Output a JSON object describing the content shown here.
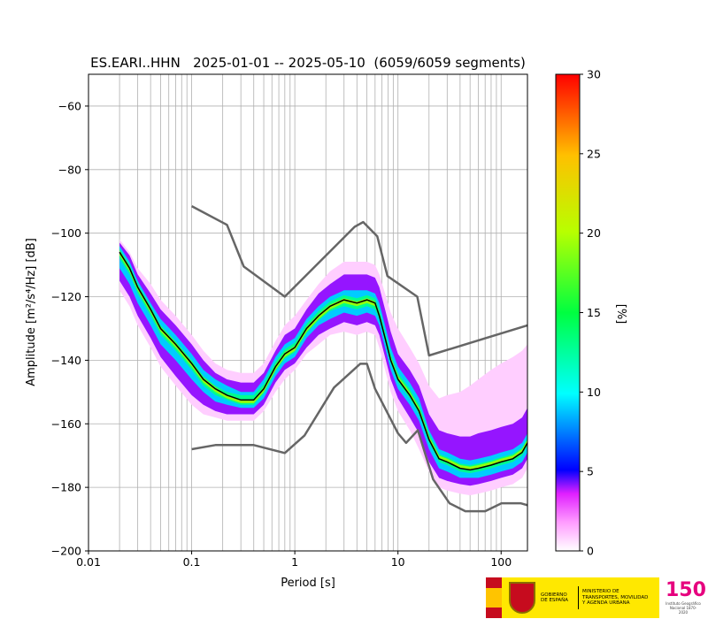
{
  "chart_data": {
    "type": "heatmap",
    "title": "ES.EARI..HHN   2025-01-01 -- 2025-05-10  (6059/6059 segments)",
    "xlabel": "Period [s]",
    "ylabel": "Amplitude [m²/s⁴/Hz] [dB]",
    "xscale": "log",
    "xlim": [
      0.01,
      180
    ],
    "ylim": [
      -200,
      -50
    ],
    "x_ticks": [
      {
        "value": 0.01,
        "label": "0.01"
      },
      {
        "value": 0.1,
        "label": "0.1"
      },
      {
        "value": 1,
        "label": "1"
      },
      {
        "value": 10,
        "label": "10"
      },
      {
        "value": 100,
        "label": "100"
      }
    ],
    "y_ticks": [
      {
        "value": -60,
        "label": "−60"
      },
      {
        "value": -80,
        "label": "−80"
      },
      {
        "value": -100,
        "label": "−100"
      },
      {
        "value": -120,
        "label": "−120"
      },
      {
        "value": -140,
        "label": "−140"
      },
      {
        "value": -160,
        "label": "−160"
      },
      {
        "value": -180,
        "label": "−180"
      },
      {
        "value": -200,
        "label": "−200"
      }
    ],
    "grid": true,
    "colorbar": {
      "label": "[%]",
      "range": [
        0,
        30
      ],
      "ticks": [
        {
          "value": 0,
          "label": "0"
        },
        {
          "value": 5,
          "label": "5"
        },
        {
          "value": 10,
          "label": "10"
        },
        {
          "value": 15,
          "label": "15"
        },
        {
          "value": 20,
          "label": "20"
        },
        {
          "value": 25,
          "label": "25"
        },
        {
          "value": 30,
          "label": "30"
        }
      ]
    },
    "mode_curve": {
      "x": [
        0.02,
        0.025,
        0.03,
        0.04,
        0.05,
        0.07,
        0.1,
        0.13,
        0.17,
        0.22,
        0.3,
        0.4,
        0.5,
        0.65,
        0.8,
        1.0,
        1.3,
        1.7,
        2.2,
        3.0,
        4.0,
        5.0,
        6.0,
        6.6,
        7.5,
        8.5,
        10,
        13,
        16,
        20,
        25,
        30,
        40,
        50,
        60,
        80,
        100,
        130,
        160,
        180
      ],
      "y": [
        -106,
        -111,
        -117,
        -124,
        -130,
        -135,
        -141,
        -146,
        -149,
        -151,
        -152.5,
        -152.5,
        -149,
        -142,
        -138,
        -136,
        -130,
        -126,
        -123,
        -121,
        -122,
        -121,
        -122,
        -126,
        -133,
        -140,
        -146,
        -151,
        -156,
        -165,
        -171,
        -172,
        -174,
        -174.5,
        -174,
        -173,
        -172,
        -171,
        -169,
        -166
      ]
    },
    "density_bands": [
      {
        "level": 1,
        "lower": [
          -118,
          -123,
          -129,
          -136,
          -142,
          -148,
          -154,
          -157,
          -158,
          -159,
          -159,
          -159,
          -156,
          -150,
          -146,
          -143,
          -138,
          -135,
          -132,
          -131,
          -132,
          -131,
          -132,
          -136,
          -143,
          -150,
          -156,
          -162,
          -168,
          -175,
          -180,
          -181,
          -182,
          -182.5,
          -182,
          -181,
          -180,
          -179,
          -177,
          -174
        ],
        "upper": [
          -102,
          -106,
          -111,
          -116,
          -121,
          -126,
          -132,
          -137,
          -141,
          -143,
          -144,
          -144,
          -141,
          -134,
          -129,
          -126,
          -121,
          -116,
          -112,
          -109,
          -109,
          -109,
          -110,
          -113,
          -119,
          -125,
          -130,
          -136,
          -141,
          -148,
          -152,
          -151,
          -150,
          -148,
          -146,
          -143,
          -141,
          -139,
          -137,
          -135
        ]
      },
      {
        "level": 4,
        "lower": [
          -115,
          -120,
          -126,
          -133,
          -139,
          -145,
          -151,
          -154,
          -156,
          -157,
          -157,
          -157,
          -154,
          -147,
          -143,
          -141,
          -136,
          -132,
          -130,
          -128,
          -129,
          -128,
          -129,
          -132,
          -139,
          -146,
          -152,
          -158,
          -163,
          -172,
          -177,
          -178,
          -179,
          -179.5,
          -179,
          -178,
          -177,
          -176,
          -174,
          -171
        ],
        "upper": [
          -103,
          -107,
          -113,
          -119,
          -124,
          -129,
          -135,
          -140,
          -144,
          -146,
          -147,
          -147,
          -144,
          -137,
          -132,
          -130,
          -124,
          -119,
          -116,
          -113,
          -113,
          -113,
          -114,
          -117,
          -124,
          -131,
          -138,
          -143,
          -148,
          -157,
          -162,
          -163,
          -164,
          -164,
          -163,
          -162,
          -161,
          -160,
          -158,
          -155
        ]
      },
      {
        "level": 9,
        "lower": [
          -111,
          -116,
          -122,
          -129,
          -135,
          -140,
          -146,
          -150,
          -153,
          -154,
          -155,
          -155,
          -152,
          -145,
          -141,
          -139,
          -133,
          -129,
          -127,
          -125,
          -126,
          -125,
          -126,
          -129,
          -136,
          -143,
          -149,
          -154,
          -159,
          -168,
          -174,
          -175,
          -177,
          -177,
          -177,
          -176,
          -175,
          -174,
          -172,
          -169
        ],
        "upper": [
          -104,
          -109,
          -115,
          -122,
          -127,
          -132,
          -138,
          -143,
          -146,
          -148,
          -150,
          -150,
          -146,
          -139,
          -135,
          -133,
          -127,
          -123,
          -120,
          -118,
          -118,
          -118,
          -119,
          -122,
          -129,
          -136,
          -142,
          -147,
          -152,
          -162,
          -168,
          -169,
          -171,
          -171.5,
          -171,
          -170,
          -169,
          -168,
          -166,
          -163
        ]
      },
      {
        "level": 13,
        "lower": [
          -108,
          -113,
          -119,
          -126,
          -132,
          -137,
          -143,
          -148,
          -151,
          -152.5,
          -154,
          -154,
          -150.5,
          -143.5,
          -139.5,
          -137.5,
          -131.5,
          -127.5,
          -124.5,
          -123,
          -124,
          -123,
          -124,
          -127,
          -134,
          -141,
          -147,
          -152,
          -157,
          -166,
          -172,
          -173,
          -175,
          -175.5,
          -175,
          -174,
          -173,
          -172,
          -170,
          -167
        ],
        "upper": [
          -105,
          -110,
          -116,
          -123,
          -129,
          -134,
          -140,
          -145,
          -148,
          -150,
          -151,
          -151,
          -147.5,
          -140.5,
          -136.5,
          -134.5,
          -128.5,
          -124.5,
          -121.5,
          -119.5,
          -120.5,
          -119.5,
          -120.5,
          -124,
          -131,
          -138,
          -144,
          -149,
          -154,
          -163,
          -169.5,
          -170.5,
          -172.5,
          -173,
          -172.5,
          -171.5,
          -170.5,
          -169.5,
          -167.5,
          -164.5
        ]
      },
      {
        "level": 19,
        "lower": [
          -107,
          -112,
          -118,
          -125,
          -131,
          -136,
          -142,
          -147,
          -150,
          -152,
          -153.5,
          -153.5,
          -150,
          -143,
          -139,
          -137,
          -131,
          -127,
          -124,
          -122,
          -123,
          -122,
          -123,
          -126,
          -133,
          -140,
          -146,
          -151,
          -156,
          -165,
          -171,
          -172,
          -174,
          -174.5,
          -174,
          -173,
          -172,
          -171,
          -169,
          -166
        ],
        "upper": [
          -105.5,
          -110.5,
          -116.5,
          -123.5,
          -129.5,
          -134.5,
          -140.5,
          -145.5,
          -148.5,
          -151,
          -152.5,
          -152.5,
          -148.5,
          -141.5,
          -137.5,
          -135.5,
          -129.5,
          -125.5,
          -122.5,
          -120.5,
          -121.5,
          -120.5,
          -121.5,
          -125,
          -132,
          -139,
          -145,
          -150,
          -155,
          -164,
          -170,
          -171,
          -173,
          -173.5,
          -173,
          -172,
          -171,
          -170,
          -168,
          -165
        ]
      }
    ],
    "noise_model_high": {
      "x": [
        0.1,
        0.22,
        0.32,
        0.8,
        3.8,
        4.6,
        6.3,
        7.9,
        15.4,
        20,
        180
      ],
      "y": [
        -91.5,
        -97.4,
        -110.5,
        -120,
        -98,
        -96.5,
        -101,
        -113.5,
        -120,
        -138.5,
        -129
      ]
    },
    "noise_model_low": {
      "x": [
        0.1,
        0.17,
        0.4,
        0.8,
        1.24,
        2.4,
        4.3,
        5.0,
        6.0,
        10,
        12,
        15.6,
        21.9,
        31.6,
        45,
        70,
        101,
        154,
        180
      ],
      "y": [
        -168,
        -166.7,
        -166.7,
        -169.2,
        -163.7,
        -148.6,
        -141.1,
        -141.1,
        -149,
        -163,
        -166,
        -162,
        -177.5,
        -185,
        -187.5,
        -187.5,
        -185,
        -185,
        -185.6
      ]
    }
  },
  "footer": {
    "gov_text": "GOBIERNO DE ESPAÑA",
    "ministry_text": "MINISTERIO DE TRANSPORTES, MOVILIDAD Y AGENDA URBANA",
    "ign_number": "150",
    "ign_caption": "Instituto Geográfico Nacional 1870-2020"
  }
}
